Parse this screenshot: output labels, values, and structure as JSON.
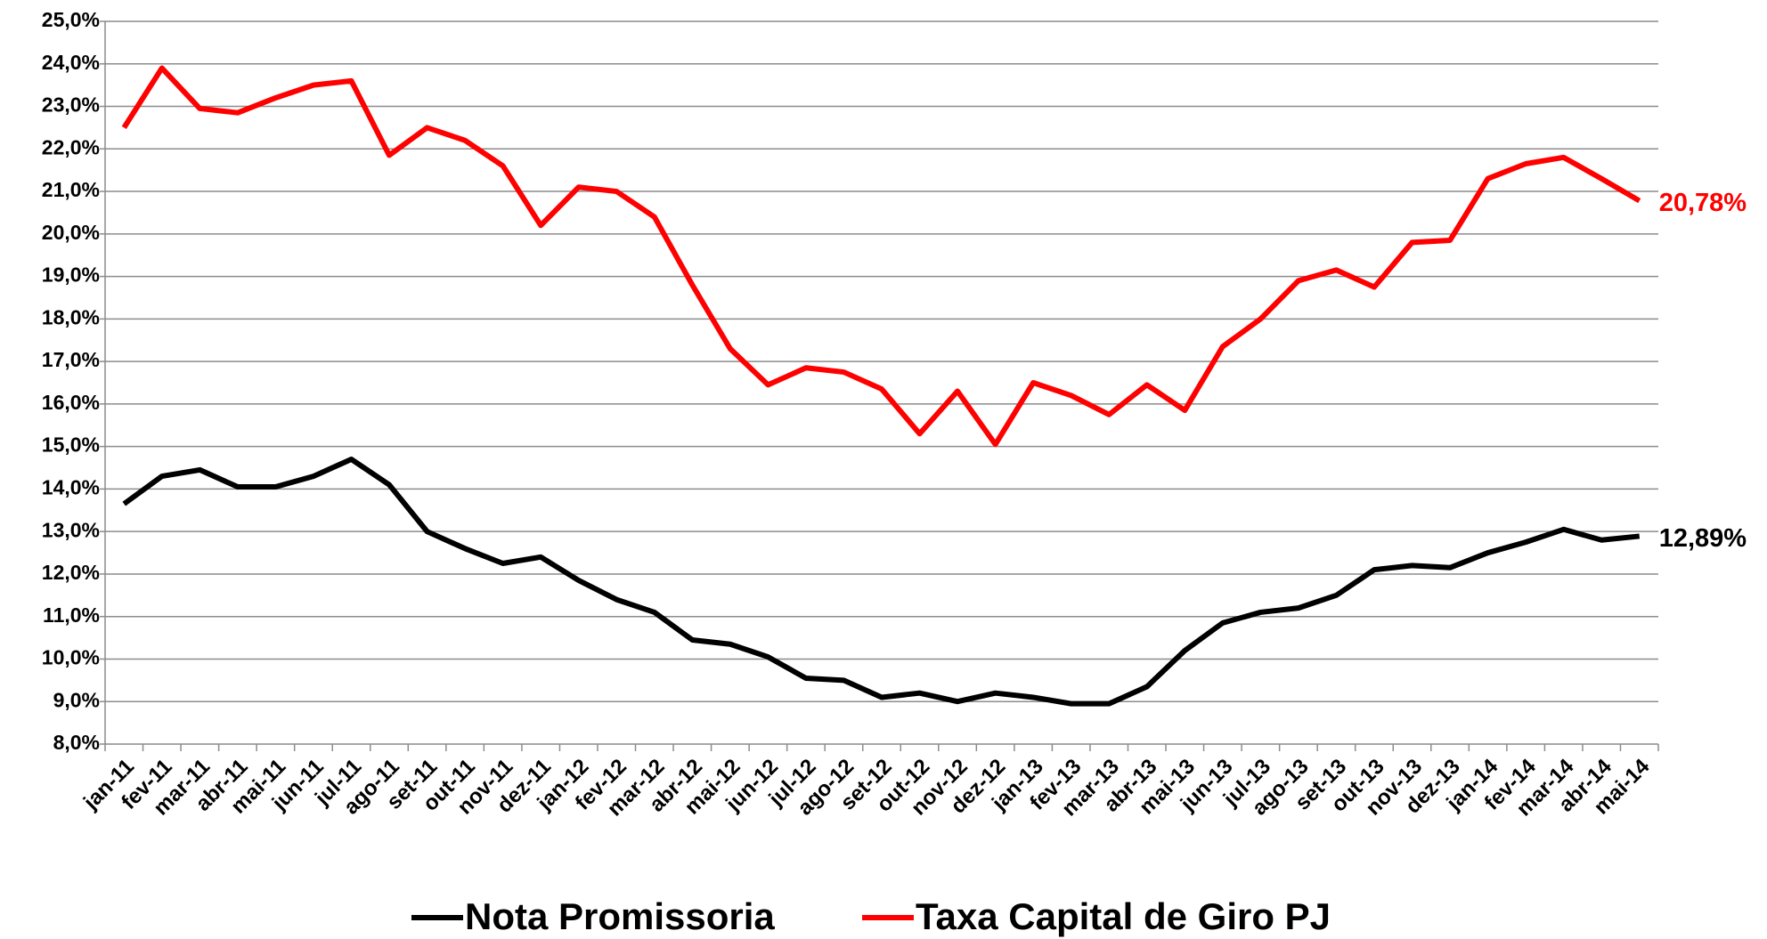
{
  "chart_data": {
    "type": "line",
    "categories": [
      "jan-11",
      "fev-11",
      "mar-11",
      "abr-11",
      "mai-11",
      "jun-11",
      "jul-11",
      "ago-11",
      "set-11",
      "out-11",
      "nov-11",
      "dez-11",
      "jan-12",
      "fev-12",
      "mar-12",
      "abr-12",
      "mai-12",
      "jun-12",
      "jul-12",
      "ago-12",
      "set-12",
      "out-12",
      "nov-12",
      "dez-12",
      "jan-13",
      "fev-13",
      "mar-13",
      "abr-13",
      "mai-13",
      "jun-13",
      "jul-13",
      "ago-13",
      "set-13",
      "out-13",
      "nov-13",
      "dez-13",
      "jan-14",
      "fev-14",
      "mar-14",
      "abr-14",
      "mai-14"
    ],
    "series": [
      {
        "name": "Nota Promissoria",
        "color": "#000000",
        "values": [
          13.65,
          14.3,
          14.45,
          14.05,
          14.05,
          14.3,
          14.7,
          14.1,
          13.0,
          12.6,
          12.25,
          12.4,
          11.85,
          11.4,
          11.1,
          10.45,
          10.35,
          10.05,
          9.55,
          9.5,
          9.1,
          9.2,
          9.0,
          9.2,
          9.1,
          8.95,
          8.95,
          9.35,
          10.2,
          10.85,
          11.1,
          11.2,
          11.5,
          12.1,
          12.2,
          12.15,
          12.5,
          12.75,
          13.05,
          12.8,
          12.89
        ],
        "value_labels": [
          null,
          null,
          null,
          null,
          null,
          null,
          null,
          null,
          null,
          null,
          null,
          null,
          null,
          null,
          null,
          null,
          null,
          null,
          null,
          null,
          null,
          null,
          null,
          null,
          null,
          null,
          null,
          null,
          null,
          null,
          null,
          null,
          null,
          null,
          null,
          null,
          null,
          null,
          null,
          null,
          "12,89%"
        ]
      },
      {
        "name": "Taxa Capital de Giro PJ",
        "color": "#ff0000",
        "values": [
          22.5,
          23.9,
          22.95,
          22.85,
          23.2,
          23.5,
          23.6,
          21.85,
          22.5,
          22.2,
          21.6,
          20.2,
          21.1,
          21.0,
          20.4,
          18.8,
          17.3,
          16.45,
          16.85,
          16.75,
          16.35,
          15.3,
          16.3,
          15.05,
          16.5,
          16.2,
          15.75,
          16.45,
          15.85,
          17.35,
          18.0,
          18.9,
          19.15,
          18.75,
          19.8,
          19.85,
          21.3,
          21.65,
          21.8,
          21.3,
          20.78
        ],
        "value_labels": [
          null,
          null,
          null,
          null,
          null,
          null,
          null,
          null,
          null,
          null,
          null,
          null,
          null,
          null,
          null,
          null,
          null,
          null,
          null,
          null,
          null,
          null,
          null,
          null,
          null,
          null,
          null,
          null,
          null,
          null,
          null,
          null,
          null,
          null,
          null,
          null,
          null,
          null,
          null,
          null,
          "20,78%"
        ]
      }
    ],
    "ylim": [
      8,
      25
    ],
    "yticks": [
      {
        "value": 8,
        "label": "8,0%"
      },
      {
        "value": 9,
        "label": "9,0%"
      },
      {
        "value": 10,
        "label": "10,0%"
      },
      {
        "value": 11,
        "label": "11,0%"
      },
      {
        "value": 12,
        "label": "12,0%"
      },
      {
        "value": 13,
        "label": "13,0%"
      },
      {
        "value": 14,
        "label": "14,0%"
      },
      {
        "value": 15,
        "label": "15,0%"
      },
      {
        "value": 16,
        "label": "16,0%"
      },
      {
        "value": 17,
        "label": "17,0%"
      },
      {
        "value": 18,
        "label": "18,0%"
      },
      {
        "value": 19,
        "label": "19,0%"
      },
      {
        "value": 20,
        "label": "20,0%"
      },
      {
        "value": 21,
        "label": "21,0%"
      },
      {
        "value": 22,
        "label": "22,0%"
      },
      {
        "value": 23,
        "label": "23,0%"
      },
      {
        "value": 24,
        "label": "24,0%"
      },
      {
        "value": 25,
        "label": "25,0%"
      }
    ],
    "grid": true,
    "legend": "bottom"
  }
}
